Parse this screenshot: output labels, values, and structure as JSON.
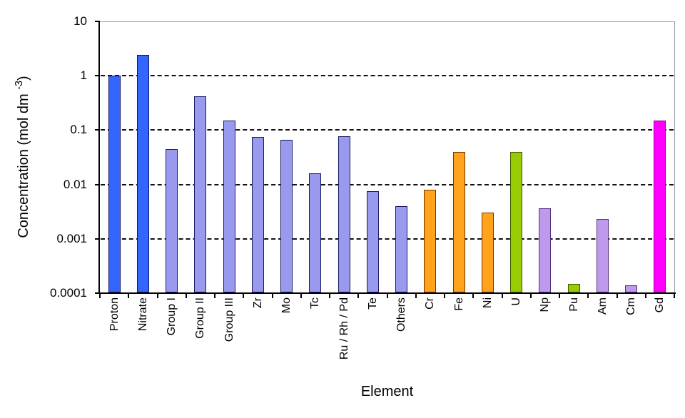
{
  "chart_data": {
    "type": "bar",
    "title": "",
    "xlabel": "Element",
    "ylabel": {
      "prefix": "Concentration (mol dm ",
      "superscript": "-3",
      "suffix": ")"
    },
    "yscale": "log",
    "ylim": [
      0.0001,
      10
    ],
    "ytick_labels": [
      "10",
      "1",
      "0.1",
      "0.01",
      "0.001",
      "0.0001"
    ],
    "ytick_values": [
      10,
      1,
      0.1,
      0.01,
      0.001,
      0.0001
    ],
    "gridline_values": [
      1,
      0.1,
      0.01,
      0.001
    ],
    "grid": "horizontal-dashed",
    "legend": "none",
    "categories": [
      "Proton",
      "Nitrate",
      "Group I",
      "Group II",
      "Group III",
      "Zr",
      "Mo",
      "Tc",
      "Ru / Rh / Pd",
      "Te",
      "Others",
      "Cr",
      "Fe",
      "Ni",
      "U",
      "Np",
      "Pu",
      "Am",
      "Cm",
      "Gd"
    ],
    "values": [
      1.0,
      2.4,
      0.045,
      0.42,
      0.15,
      0.075,
      0.066,
      0.016,
      0.077,
      0.0075,
      0.004,
      0.008,
      0.04,
      0.003,
      0.04,
      0.0036,
      0.00015,
      0.0023,
      0.00014,
      0.15
    ],
    "bar_color_keys": [
      "blue",
      "blue",
      "periwinkle",
      "periwinkle",
      "periwinkle",
      "periwinkle",
      "periwinkle",
      "periwinkle",
      "periwinkle",
      "periwinkle",
      "periwinkle",
      "orange",
      "orange",
      "orange",
      "green",
      "lavender",
      "green",
      "lavender",
      "lavender",
      "magenta"
    ],
    "colors": {
      "blue": {
        "fill": "#3366FF",
        "stroke": "#14145F"
      },
      "periwinkle": {
        "fill": "#9999EE",
        "stroke": "#1A1A66"
      },
      "orange": {
        "fill": "#FFA21C",
        "stroke": "#7A3400"
      },
      "green": {
        "fill": "#99CC00",
        "stroke": "#3F5C00"
      },
      "lavender": {
        "fill": "#BE99EC",
        "stroke": "#50307E"
      },
      "magenta": {
        "fill": "#FF00FF",
        "stroke": "#8B008B"
      }
    },
    "axis_color": "#000000",
    "frame_color": "#9A9A9A",
    "background": "#FFFFFF"
  }
}
